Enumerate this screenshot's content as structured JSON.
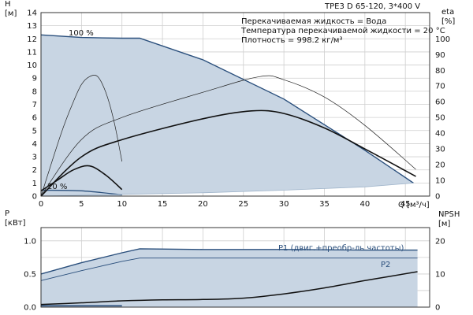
{
  "chart_data": [
    {
      "type": "line",
      "title": "TPE3 D 65-120, 3*400 V",
      "xlabel": "Q [м³/ч]",
      "ylabel_left": "H\n[м]",
      "ylabel_right": "eta\n[%]",
      "xlim": [
        0,
        48
      ],
      "ylim": [
        0,
        14
      ],
      "ylim_right": [
        0,
        116.7
      ],
      "xticks": [
        0,
        5,
        10,
        15,
        20,
        25,
        30,
        35,
        40,
        45
      ],
      "yticks": [
        0,
        1,
        2,
        3,
        4,
        5,
        6,
        7,
        8,
        9,
        10,
        11,
        12,
        13,
        14
      ],
      "yticks_right": [
        0,
        10,
        20,
        30,
        40,
        50,
        60,
        70,
        80,
        90,
        100
      ],
      "grid": true,
      "annotations": [
        "Перекачиваемая жидкость = Вода",
        "Температура перекачиваемой жидкости = 20 °C",
        "Плотность = 998.2 кг/м³"
      ],
      "series": [
        {
          "name": "100 %",
          "kind": "area",
          "x": [
            0,
            5,
            10,
            12.2,
            20,
            30,
            40,
            46
          ],
          "y": [
            12.3,
            12.1,
            12.05,
            12.05,
            10.4,
            7.4,
            3.5,
            1.0
          ]
        },
        {
          "name": "20 %",
          "kind": "area-bottom",
          "x": [
            0,
            5,
            10
          ],
          "y": [
            0.45,
            0.4,
            0.1
          ]
        },
        {
          "kind": "duty-line",
          "x": [
            0,
            10,
            20,
            30,
            40,
            46
          ],
          "y": [
            0,
            0.13,
            0.25,
            0.45,
            0.7,
            1.0
          ]
        },
        {
          "kind": "pump-curve",
          "x": [
            0,
            5,
            10,
            20,
            26,
            30,
            35,
            40,
            46.3
          ],
          "y": [
            0,
            3.0,
            4.3,
            5.9,
            6.5,
            6.3,
            5.2,
            3.6,
            1.5
          ]
        },
        {
          "kind": "efficiency",
          "x": [
            0,
            5,
            10,
            20,
            27,
            30,
            35,
            40,
            46.3
          ],
          "y": [
            0,
            36,
            50,
            66,
            76,
            74,
            63,
            45,
            17
          ]
        },
        {
          "kind": "efficiency",
          "x": [
            0,
            2.5,
            4,
            5,
            6,
            7,
            8,
            9,
            10
          ],
          "y": [
            0,
            40,
            60,
            71,
            76,
            76,
            66,
            48,
            22
          ]
        },
        {
          "kind": "pump-curve",
          "x": [
            0,
            2,
            4,
            6,
            8,
            10
          ],
          "y": [
            0.4,
            1.2,
            2.0,
            2.3,
            1.6,
            0.5
          ]
        }
      ]
    },
    {
      "type": "line",
      "ylabel_left": "P\n[кВт]",
      "ylabel_right": "NPSH\n[м]",
      "xlim": [
        0,
        48
      ],
      "ylim": [
        0,
        1.2
      ],
      "ylim_right": [
        0,
        24
      ],
      "yticks": [
        0.0,
        0.5,
        1.0
      ],
      "yticks_right": [
        0,
        10,
        20
      ],
      "grid": true,
      "series": [
        {
          "name": "P1 (двиг.+преобр-ль частоты)",
          "kind": "power-area",
          "x": [
            0,
            5,
            10,
            12.2,
            20,
            30,
            40,
            46.5
          ],
          "y": [
            0.5,
            0.67,
            0.82,
            0.88,
            0.87,
            0.87,
            0.86,
            0.86
          ]
        },
        {
          "name": "P2",
          "kind": "power",
          "x": [
            0,
            5,
            10,
            12.2,
            20,
            30,
            40,
            46.5
          ],
          "y": [
            0.4,
            0.55,
            0.69,
            0.74,
            0.74,
            0.74,
            0.74,
            0.74
          ]
        },
        {
          "kind": "npsh",
          "x": [
            0,
            5,
            10,
            15,
            20,
            25,
            30,
            35,
            40,
            46.5
          ],
          "y": [
            0.8,
            1.3,
            1.9,
            2.2,
            2.3,
            2.7,
            4.0,
            5.8,
            8.0,
            10.7
          ]
        },
        {
          "kind": "low-power",
          "x": [
            0,
            10
          ],
          "y": [
            0.02,
            0.02
          ]
        }
      ]
    }
  ]
}
